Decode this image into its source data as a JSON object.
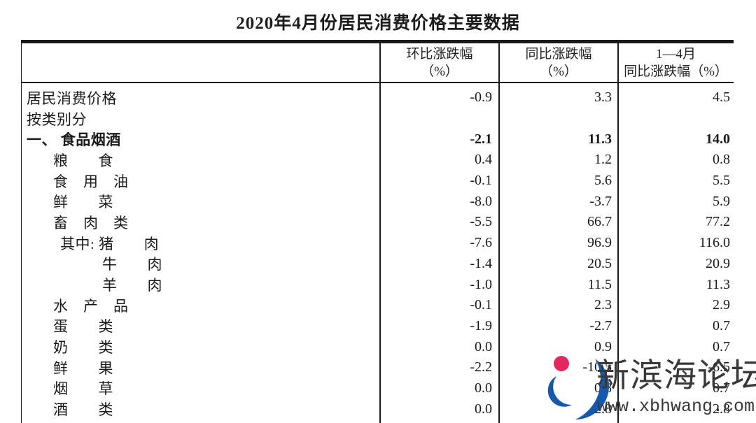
{
  "title": "2020年4月份居民消费价格主要数据",
  "table": {
    "columns": [
      {
        "line1": "环比涨跌幅",
        "line2": "（%）"
      },
      {
        "line1": "同比涨跌幅",
        "line2": "（%）"
      },
      {
        "line1": "1—4月",
        "line2": "同比涨跌幅（%）"
      }
    ],
    "rows": [
      {
        "label": "居民消费价格",
        "indent": 0,
        "bold": false,
        "mom": "-0.9",
        "yoy": "3.3",
        "ytd": "4.5"
      },
      {
        "label": "按类别分",
        "indent": 0,
        "bold": false,
        "mom": "",
        "yoy": "",
        "ytd": ""
      },
      {
        "label": "一、 食品烟酒",
        "indent": 0,
        "bold": true,
        "mom": "-2.1",
        "yoy": "11.3",
        "ytd": "14.0"
      },
      {
        "label": "粮　　食",
        "indent": 1,
        "bold": false,
        "mom": "0.4",
        "yoy": "1.2",
        "ytd": "0.8"
      },
      {
        "label": "食　用　油",
        "indent": 1,
        "bold": false,
        "mom": "-0.1",
        "yoy": "5.6",
        "ytd": "5.5"
      },
      {
        "label": "鲜　　菜",
        "indent": 1,
        "bold": false,
        "mom": "-8.0",
        "yoy": "-3.7",
        "ytd": "5.9"
      },
      {
        "label": "畜　肉　类",
        "indent": 1,
        "bold": false,
        "mom": "-5.5",
        "yoy": "66.7",
        "ytd": "77.2"
      },
      {
        "label": "其中: 猪　　肉",
        "indent": 2,
        "bold": false,
        "mom": "-7.6",
        "yoy": "96.9",
        "ytd": "116.0"
      },
      {
        "label": "牛　　肉",
        "indent": 3,
        "bold": false,
        "mom": "-1.4",
        "yoy": "20.5",
        "ytd": "20.9"
      },
      {
        "label": "羊　　肉",
        "indent": 3,
        "bold": false,
        "mom": "-1.0",
        "yoy": "11.5",
        "ytd": "11.3"
      },
      {
        "label": "水　产　品",
        "indent": 1,
        "bold": false,
        "mom": "-0.1",
        "yoy": "2.3",
        "ytd": "2.9"
      },
      {
        "label": "蛋　　类",
        "indent": 1,
        "bold": false,
        "mom": "-1.9",
        "yoy": "-2.7",
        "ytd": "0.7"
      },
      {
        "label": "奶　　类",
        "indent": 1,
        "bold": false,
        "mom": "0.0",
        "yoy": "0.9",
        "ytd": "0.7"
      },
      {
        "label": "鲜　　果",
        "indent": 1,
        "bold": false,
        "mom": "-2.2",
        "yoy": "-10.5",
        "ytd": "-6.5"
      },
      {
        "label": "烟　　草",
        "indent": 1,
        "bold": false,
        "mom": "0.0",
        "yoy": "0.8",
        "ytd": "0.7"
      },
      {
        "label": "酒　　类",
        "indent": 1,
        "bold": false,
        "mom": "0.0",
        "yoy": "2.8",
        "ytd": "2.8"
      }
    ]
  },
  "watermark": {
    "site_name": "新滨海论坛",
    "site_url": "www.xbhwang.com",
    "logo_blue": "#1459ae",
    "logo_pink": "#e4275e",
    "text_color": "#383838"
  }
}
